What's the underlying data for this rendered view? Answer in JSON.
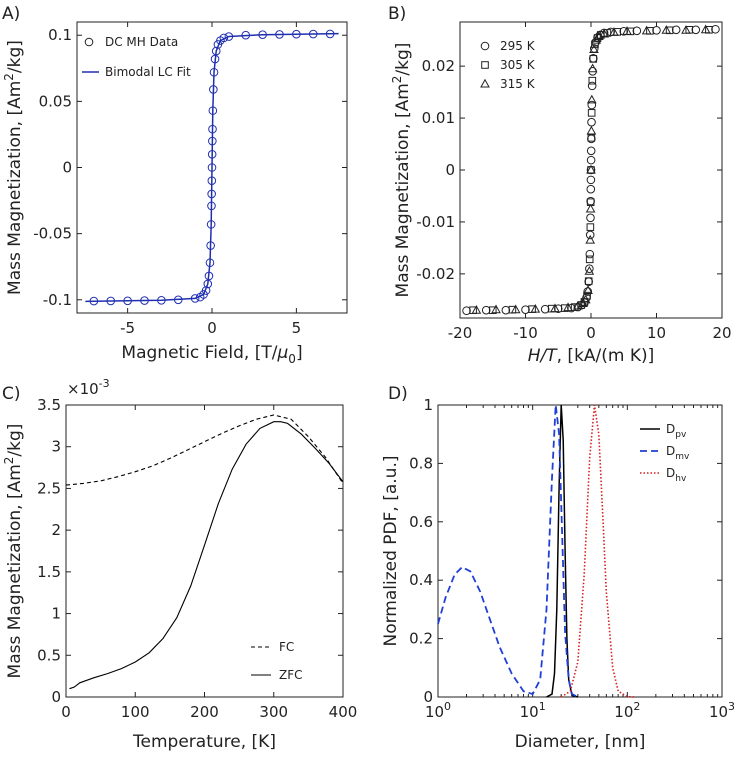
{
  "panels": {
    "A": {
      "label": "A)"
    },
    "B": {
      "label": "B)"
    },
    "C": {
      "label": "C)",
      "exponent": "×10",
      "exponent_power": "-3"
    },
    "D": {
      "label": "D)"
    }
  },
  "chart_data": [
    {
      "id": "A",
      "type": "scatter",
      "title": "",
      "xlabel": "Magnetic Field, [T/μ0]",
      "ylabel": "Mass Magnetization, [Am²/kg]",
      "xlim": [
        -8,
        8
      ],
      "ylim": [
        -0.11,
        0.11
      ],
      "xticks": [
        -5,
        0,
        5
      ],
      "xtick_labels": [
        "-5",
        "0",
        "5"
      ],
      "yticks": [
        -0.1,
        -0.05,
        0,
        0.05,
        0.1
      ],
      "ytick_labels": [
        "-0.1",
        "-0.05",
        "0",
        "0.05",
        "0.1"
      ],
      "legend": [
        "DC MH Data",
        "Bimodal LC Fit"
      ],
      "legend_position": "top-left",
      "series": [
        {
          "name": "DC MH Data",
          "marker": "circle",
          "x": [
            -7,
            -6,
            -5,
            -4,
            -3,
            -2,
            -1,
            -0.7,
            -0.5,
            -0.35,
            -0.25,
            -0.18,
            -0.12,
            -0.08,
            -0.05,
            -0.03,
            -0.02,
            -0.01,
            0,
            0.01,
            0.02,
            0.03,
            0.05,
            0.08,
            0.12,
            0.18,
            0.25,
            0.35,
            0.5,
            0.7,
            1,
            2,
            3,
            4,
            5,
            6,
            7
          ],
          "y": [
            -0.101,
            -0.1009,
            -0.1008,
            -0.1006,
            -0.1004,
            -0.1,
            -0.099,
            -0.098,
            -0.096,
            -0.093,
            -0.088,
            -0.082,
            -0.072,
            -0.059,
            -0.043,
            -0.029,
            -0.02,
            -0.01,
            0,
            0.01,
            0.02,
            0.029,
            0.043,
            0.059,
            0.072,
            0.082,
            0.088,
            0.093,
            0.096,
            0.098,
            0.099,
            0.1,
            0.1004,
            0.1006,
            0.1008,
            0.1009,
            0.101
          ]
        },
        {
          "name": "Bimodal LC Fit",
          "line": "solid",
          "x": [
            -7.5,
            -3,
            -1,
            -0.5,
            -0.25,
            -0.12,
            -0.05,
            0,
            0.05,
            0.12,
            0.25,
            0.5,
            1,
            3,
            7.5
          ],
          "y": [
            -0.1012,
            -0.1004,
            -0.099,
            -0.096,
            -0.088,
            -0.072,
            -0.043,
            0,
            0.043,
            0.072,
            0.088,
            0.096,
            0.099,
            0.1004,
            0.1012
          ]
        }
      ]
    },
    {
      "id": "B",
      "type": "scatter",
      "title": "",
      "xlabel": "H/T, [kA/(m K)]",
      "ylabel": "Mass Magnetization, [Am²/kg]",
      "xlim": [
        -20,
        20
      ],
      "ylim": [
        -0.0285,
        0.0285
      ],
      "xticks": [
        -20,
        -10,
        0,
        10,
        20
      ],
      "xtick_labels": [
        "-20",
        "-10",
        "0",
        "10",
        "20"
      ],
      "yticks": [
        -0.02,
        -0.01,
        0,
        0.01,
        0.02
      ],
      "ytick_labels": [
        "-0.02",
        "-0.01",
        "0",
        "0.01",
        "0.02"
      ],
      "legend": [
        "295 K",
        "305 K",
        "315 K"
      ],
      "legend_position": "top-left",
      "series": [
        {
          "name": "295 K",
          "marker": "circle",
          "x": [
            -19,
            -16,
            -13,
            -10,
            -7,
            -5,
            -3,
            -2,
            -1.4,
            -1,
            -0.7,
            -0.5,
            -0.35,
            -0.25,
            -0.18,
            -0.12,
            -0.08,
            -0.05,
            -0.03,
            -0.015,
            0,
            0.015,
            0.03,
            0.05,
            0.08,
            0.12,
            0.18,
            0.25,
            0.35,
            0.5,
            0.7,
            1,
            1.4,
            2,
            3,
            5,
            7,
            10,
            13,
            16,
            19
          ],
          "y": [
            -0.0271,
            -0.027,
            -0.027,
            -0.0269,
            -0.0268,
            -0.0267,
            -0.0266,
            -0.0264,
            -0.026,
            -0.0255,
            -0.0246,
            -0.0234,
            -0.0215,
            -0.019,
            -0.0162,
            -0.0125,
            -0.0092,
            -0.006,
            -0.0037,
            -0.0019,
            0,
            0.0019,
            0.0037,
            0.006,
            0.0092,
            0.0125,
            0.0162,
            0.019,
            0.0215,
            0.0234,
            0.0246,
            0.0255,
            0.026,
            0.0264,
            0.0266,
            0.0267,
            0.0268,
            0.0269,
            0.027,
            0.027,
            0.0271
          ]
        },
        {
          "name": "305 K",
          "marker": "square",
          "x": [
            -18,
            -15,
            -12,
            -9,
            -6,
            -4,
            -2.5,
            -1.5,
            -1,
            -0.6,
            -0.35,
            -0.2,
            -0.1,
            -0.05,
            0,
            0.05,
            0.1,
            0.2,
            0.35,
            0.6,
            1,
            1.5,
            2.5,
            4,
            6,
            9,
            12,
            15,
            18
          ],
          "y": [
            -0.027,
            -0.027,
            -0.0269,
            -0.0268,
            -0.0267,
            -0.0266,
            -0.0264,
            -0.026,
            -0.0254,
            -0.0242,
            -0.0214,
            -0.0172,
            -0.011,
            -0.0062,
            0,
            0.0062,
            0.011,
            0.0172,
            0.0214,
            0.0242,
            0.0254,
            0.026,
            0.0264,
            0.0266,
            0.0267,
            0.0268,
            0.0269,
            0.027,
            0.027
          ]
        },
        {
          "name": "315 K",
          "marker": "triangle",
          "x": [
            -17.5,
            -14.5,
            -11.5,
            -8.5,
            -5.5,
            -3.5,
            -2,
            -1.2,
            -0.8,
            -0.45,
            -0.25,
            -0.12,
            -0.06,
            0,
            0.06,
            0.12,
            0.25,
            0.45,
            0.8,
            1.2,
            2,
            3.5,
            5.5,
            8.5,
            11.5,
            14.5,
            17.5
          ],
          "y": [
            -0.027,
            -0.0269,
            -0.0269,
            -0.0268,
            -0.0267,
            -0.0265,
            -0.0262,
            -0.0257,
            -0.025,
            -0.0232,
            -0.0195,
            -0.0135,
            -0.0075,
            0,
            0.0075,
            0.0135,
            0.0195,
            0.0232,
            0.025,
            0.0257,
            0.0262,
            0.0265,
            0.0267,
            0.0268,
            0.0269,
            0.0269,
            0.027
          ]
        }
      ]
    },
    {
      "id": "C",
      "type": "line",
      "title": "",
      "xlabel": "Temperature, [K]",
      "ylabel": "Mass Magnetization, [Am²/kg]",
      "xlim": [
        0,
        400
      ],
      "ylim": [
        0,
        3.5
      ],
      "y_scale_factor": "×10^-3",
      "xticks": [
        0,
        100,
        200,
        300,
        400
      ],
      "xtick_labels": [
        "0",
        "100",
        "200",
        "300",
        "400"
      ],
      "yticks": [
        0,
        0.5,
        1,
        1.5,
        2,
        2.5,
        3,
        3.5
      ],
      "ytick_labels": [
        "0",
        "0.5",
        "1",
        "1.5",
        "2",
        "2.5",
        "3",
        "3.5"
      ],
      "legend": [
        "FC",
        "ZFC"
      ],
      "legend_position": "bottom-right",
      "series": [
        {
          "name": "FC",
          "line": "dashed",
          "x": [
            0,
            25,
            50,
            75,
            100,
            125,
            150,
            175,
            200,
            225,
            250,
            275,
            300,
            325,
            350,
            375,
            400
          ],
          "y": [
            2.54,
            2.56,
            2.59,
            2.64,
            2.7,
            2.77,
            2.86,
            2.96,
            3.06,
            3.16,
            3.25,
            3.33,
            3.38,
            3.33,
            3.12,
            2.87,
            2.56
          ]
        },
        {
          "name": "ZFC",
          "line": "solid",
          "x": [
            5,
            12,
            20,
            40,
            60,
            80,
            100,
            120,
            140,
            160,
            180,
            200,
            220,
            240,
            260,
            280,
            300,
            310,
            320,
            340,
            360,
            380,
            400
          ],
          "y": [
            0.1,
            0.12,
            0.17,
            0.23,
            0.28,
            0.34,
            0.42,
            0.53,
            0.7,
            0.95,
            1.33,
            1.82,
            2.32,
            2.73,
            3.03,
            3.22,
            3.3,
            3.3,
            3.28,
            3.15,
            2.98,
            2.8,
            2.58
          ]
        }
      ]
    },
    {
      "id": "D",
      "type": "line",
      "title": "",
      "xlabel": "Diameter, [nm]",
      "ylabel": "Normalized PDF, [a.u.]",
      "x_scale": "log",
      "xlim": [
        1,
        1000
      ],
      "ylim": [
        0,
        1
      ],
      "xticks": [
        1,
        10,
        100,
        1000
      ],
      "xtick_labels": [
        "10",
        "10",
        "10",
        "10"
      ],
      "xtick_exponents": [
        "0",
        "1",
        "2",
        "3"
      ],
      "yticks": [
        0,
        0.2,
        0.4,
        0.6,
        0.8,
        1
      ],
      "ytick_labels": [
        "0",
        "0.2",
        "0.4",
        "0.6",
        "0.8",
        "1"
      ],
      "legend": [
        "D",
        "D",
        "D"
      ],
      "legend_subscripts": [
        "pv",
        "mv",
        "hv"
      ],
      "legend_position": "top-right",
      "series": [
        {
          "name": "Dpv",
          "line": "solid",
          "color": "#000000",
          "x": [
            14,
            16,
            17,
            18,
            19,
            20,
            21,
            22,
            23,
            24,
            26,
            30
          ],
          "y": [
            0,
            0.01,
            0.08,
            0.3,
            0.72,
            1,
            0.88,
            0.5,
            0.2,
            0.06,
            0.005,
            0
          ]
        },
        {
          "name": "Dmv",
          "line": "dashed",
          "color": "#1f3fd6",
          "x": [
            1,
            1.2,
            1.5,
            1.8,
            2.2,
            2.8,
            3.5,
            4.5,
            6,
            8,
            10,
            12,
            14,
            16,
            17.5,
            19,
            20.5,
            22,
            24,
            26,
            30
          ],
          "y": [
            0.25,
            0.34,
            0.42,
            0.445,
            0.43,
            0.36,
            0.27,
            0.17,
            0.08,
            0.02,
            0.01,
            0.06,
            0.3,
            0.75,
            1,
            0.9,
            0.55,
            0.22,
            0.06,
            0.01,
            0
          ]
        },
        {
          "name": "Dhv",
          "line": "dotted",
          "color": "#d61f1f",
          "x": [
            20,
            25,
            30,
            35,
            40,
            45,
            50,
            55,
            60,
            70,
            80,
            100,
            120
          ],
          "y": [
            0,
            0.02,
            0.12,
            0.42,
            0.82,
            1,
            0.9,
            0.62,
            0.36,
            0.1,
            0.02,
            0.001,
            0
          ]
        }
      ]
    }
  ]
}
